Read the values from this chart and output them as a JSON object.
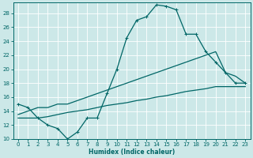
{
  "bg_color": "#cce8e8",
  "grid_color": "#aad4d4",
  "line_color": "#006666",
  "xlabel": "Humidex (Indice chaleur)",
  "xlim": [
    -0.5,
    23.5
  ],
  "ylim": [
    10,
    29.5
  ],
  "xticks": [
    0,
    1,
    2,
    3,
    4,
    5,
    6,
    7,
    8,
    9,
    10,
    11,
    12,
    13,
    14,
    15,
    16,
    17,
    18,
    19,
    20,
    21,
    22,
    23
  ],
  "yticks": [
    10,
    12,
    14,
    16,
    18,
    20,
    22,
    24,
    26,
    28
  ],
  "curve1_x": [
    0,
    1,
    2,
    3,
    4,
    5,
    6,
    7,
    8,
    9,
    10,
    11,
    12,
    13,
    14,
    15,
    16,
    17,
    18,
    19,
    20,
    21,
    22,
    23
  ],
  "curve1_y": [
    15,
    14.5,
    13,
    12,
    11.5,
    10,
    11,
    13,
    13,
    16.5,
    20,
    24.5,
    27,
    27.5,
    29.2,
    29,
    28.5,
    25,
    25,
    22.5,
    21,
    19.5,
    18,
    18
  ],
  "curve2_x": [
    0,
    1,
    2,
    3,
    4,
    5,
    6,
    7,
    8,
    9,
    10,
    11,
    12,
    13,
    14,
    15,
    16,
    17,
    18,
    19,
    20,
    21,
    22,
    23
  ],
  "curve2_y": [
    13.5,
    14,
    14.5,
    14.5,
    15,
    15,
    15.5,
    16,
    16.5,
    17,
    17.5,
    18,
    18.5,
    19,
    19.5,
    20,
    20.5,
    21,
    21.5,
    22,
    22.5,
    19.5,
    19,
    18
  ],
  "curve3_x": [
    0,
    1,
    2,
    3,
    4,
    5,
    6,
    7,
    8,
    9,
    10,
    11,
    12,
    13,
    14,
    15,
    16,
    17,
    18,
    19,
    20,
    21,
    22,
    23
  ],
  "curve3_y": [
    13,
    13,
    13,
    13.2,
    13.5,
    13.8,
    14,
    14.2,
    14.5,
    14.8,
    15,
    15.2,
    15.5,
    15.7,
    16,
    16.2,
    16.5,
    16.8,
    17,
    17.2,
    17.5,
    17.5,
    17.5,
    17.5
  ],
  "title_fontsize": 6,
  "tick_fontsize": 5,
  "xlabel_fontsize": 5.5
}
